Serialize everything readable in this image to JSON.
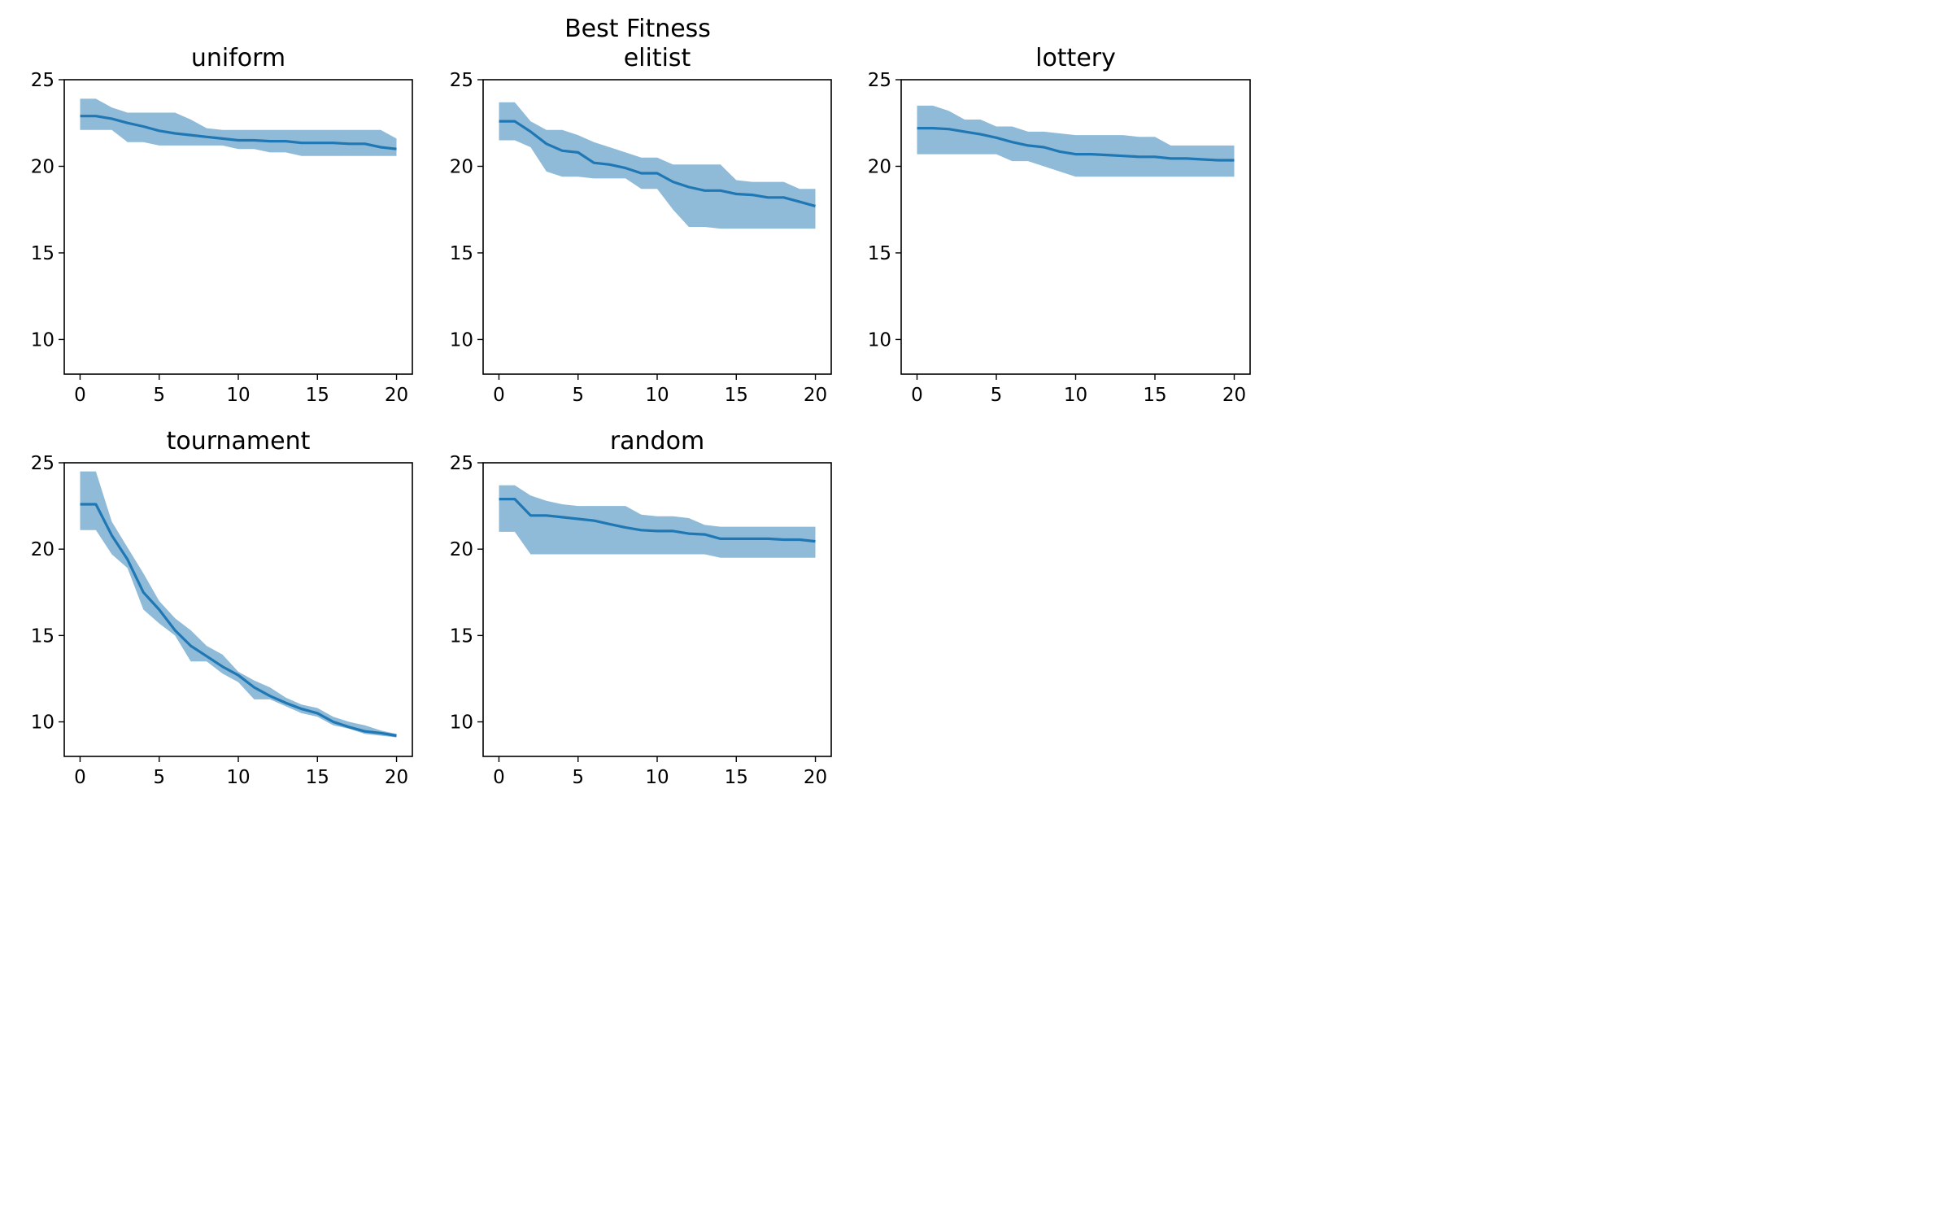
{
  "figure_title": "Best Fitness",
  "colors": {
    "line": "#1f77b4",
    "band": "#1f77b4",
    "band_opacity": 0.5
  },
  "chart_data": [
    {
      "type": "line",
      "title": "uniform",
      "xlim": [
        -1,
        21
      ],
      "ylim": [
        8,
        25
      ],
      "xticks": [
        0,
        5,
        10,
        15,
        20
      ],
      "yticks": [
        10,
        15,
        20,
        25
      ],
      "x": [
        0,
        1,
        2,
        3,
        4,
        5,
        6,
        7,
        8,
        9,
        10,
        11,
        12,
        13,
        14,
        15,
        16,
        17,
        18,
        19,
        20
      ],
      "series": [
        {
          "mean": [
            22.9,
            22.9,
            22.75,
            22.5,
            22.3,
            22.05,
            21.9,
            21.8,
            21.7,
            21.6,
            21.5,
            21.5,
            21.45,
            21.45,
            21.35,
            21.35,
            21.35,
            21.3,
            21.3,
            21.1,
            21.0
          ],
          "upper": [
            23.9,
            23.9,
            23.4,
            23.1,
            23.1,
            23.1,
            23.1,
            22.7,
            22.2,
            22.1,
            22.1,
            22.1,
            22.1,
            22.1,
            22.1,
            22.1,
            22.1,
            22.1,
            22.1,
            22.1,
            21.6
          ],
          "lower": [
            22.1,
            22.1,
            22.1,
            21.4,
            21.4,
            21.2,
            21.2,
            21.2,
            21.2,
            21.2,
            21.0,
            21.0,
            20.8,
            20.8,
            20.6,
            20.6,
            20.6,
            20.6,
            20.6,
            20.6,
            20.6
          ]
        }
      ]
    },
    {
      "type": "line",
      "title": "elitist",
      "xlim": [
        -1,
        21
      ],
      "ylim": [
        8,
        25
      ],
      "xticks": [
        0,
        5,
        10,
        15,
        20
      ],
      "yticks": [
        10,
        15,
        20,
        25
      ],
      "x": [
        0,
        1,
        2,
        3,
        4,
        5,
        6,
        7,
        8,
        9,
        10,
        11,
        12,
        13,
        14,
        15,
        16,
        17,
        18,
        19,
        20
      ],
      "series": [
        {
          "mean": [
            22.6,
            22.6,
            22.0,
            21.3,
            20.9,
            20.8,
            20.2,
            20.1,
            19.9,
            19.6,
            19.6,
            19.1,
            18.8,
            18.6,
            18.6,
            18.4,
            18.35,
            18.2,
            18.2,
            17.95,
            17.7
          ],
          "upper": [
            23.7,
            23.7,
            22.6,
            22.1,
            22.1,
            21.8,
            21.4,
            21.1,
            20.8,
            20.5,
            20.5,
            20.1,
            20.1,
            20.1,
            20.1,
            19.2,
            19.1,
            19.1,
            19.1,
            18.7,
            18.7
          ],
          "lower": [
            21.5,
            21.5,
            21.1,
            19.7,
            19.4,
            19.4,
            19.3,
            19.3,
            19.3,
            18.7,
            18.7,
            17.5,
            16.5,
            16.5,
            16.4,
            16.4,
            16.4,
            16.4,
            16.4,
            16.4,
            16.4
          ]
        }
      ]
    },
    {
      "type": "line",
      "title": "lottery",
      "xlim": [
        -1,
        21
      ],
      "ylim": [
        8,
        25
      ],
      "xticks": [
        0,
        5,
        10,
        15,
        20
      ],
      "yticks": [
        10,
        15,
        20,
        25
      ],
      "x": [
        0,
        1,
        2,
        3,
        4,
        5,
        6,
        7,
        8,
        9,
        10,
        11,
        12,
        13,
        14,
        15,
        16,
        17,
        18,
        19,
        20
      ],
      "series": [
        {
          "mean": [
            22.2,
            22.2,
            22.15,
            22.0,
            21.85,
            21.65,
            21.4,
            21.2,
            21.1,
            20.85,
            20.7,
            20.7,
            20.65,
            20.6,
            20.55,
            20.55,
            20.45,
            20.45,
            20.4,
            20.35,
            20.35
          ],
          "upper": [
            23.5,
            23.5,
            23.2,
            22.7,
            22.7,
            22.3,
            22.3,
            22.0,
            22.0,
            21.9,
            21.8,
            21.8,
            21.8,
            21.8,
            21.7,
            21.7,
            21.2,
            21.2,
            21.2,
            21.2,
            21.2
          ],
          "lower": [
            20.7,
            20.7,
            20.7,
            20.7,
            20.7,
            20.7,
            20.3,
            20.3,
            20.0,
            19.7,
            19.4,
            19.4,
            19.4,
            19.4,
            19.4,
            19.4,
            19.4,
            19.4,
            19.4,
            19.4,
            19.4
          ]
        }
      ]
    },
    {
      "type": "line",
      "title": "tournament",
      "xlim": [
        -1,
        21
      ],
      "ylim": [
        8,
        25
      ],
      "xticks": [
        0,
        5,
        10,
        15,
        20
      ],
      "yticks": [
        10,
        15,
        20,
        25
      ],
      "x": [
        0,
        1,
        2,
        3,
        4,
        5,
        6,
        7,
        8,
        9,
        10,
        11,
        12,
        13,
        14,
        15,
        16,
        17,
        18,
        19,
        20
      ],
      "series": [
        {
          "mean": [
            22.6,
            22.6,
            20.8,
            19.4,
            17.5,
            16.5,
            15.3,
            14.4,
            13.8,
            13.2,
            12.7,
            12.0,
            11.5,
            11.1,
            10.75,
            10.5,
            10.0,
            9.7,
            9.45,
            9.35,
            9.2
          ],
          "upper": [
            24.5,
            24.5,
            21.6,
            20.1,
            18.6,
            17.0,
            16.0,
            15.3,
            14.4,
            13.9,
            12.9,
            12.4,
            12.0,
            11.4,
            11.0,
            10.8,
            10.3,
            10.0,
            9.8,
            9.5,
            9.3
          ],
          "lower": [
            21.1,
            21.1,
            19.7,
            18.9,
            16.5,
            15.7,
            15.0,
            13.5,
            13.5,
            12.8,
            12.3,
            11.3,
            11.3,
            10.9,
            10.5,
            10.3,
            9.8,
            9.6,
            9.3,
            9.2,
            9.1
          ]
        }
      ]
    },
    {
      "type": "line",
      "title": "random",
      "xlim": [
        -1,
        21
      ],
      "ylim": [
        8,
        25
      ],
      "xticks": [
        0,
        5,
        10,
        15,
        20
      ],
      "yticks": [
        10,
        15,
        20,
        25
      ],
      "x": [
        0,
        1,
        2,
        3,
        4,
        5,
        6,
        7,
        8,
        9,
        10,
        11,
        12,
        13,
        14,
        15,
        16,
        17,
        18,
        19,
        20
      ],
      "series": [
        {
          "mean": [
            22.9,
            22.9,
            21.95,
            21.95,
            21.85,
            21.75,
            21.65,
            21.45,
            21.25,
            21.1,
            21.05,
            21.05,
            20.9,
            20.85,
            20.6,
            20.6,
            20.6,
            20.6,
            20.55,
            20.55,
            20.45
          ],
          "upper": [
            23.7,
            23.7,
            23.1,
            22.8,
            22.6,
            22.5,
            22.5,
            22.5,
            22.5,
            22.0,
            21.9,
            21.9,
            21.8,
            21.4,
            21.3,
            21.3,
            21.3,
            21.3,
            21.3,
            21.3,
            21.3
          ],
          "lower": [
            21.0,
            21.0,
            19.7,
            19.7,
            19.7,
            19.7,
            19.7,
            19.7,
            19.7,
            19.7,
            19.7,
            19.7,
            19.7,
            19.7,
            19.5,
            19.5,
            19.5,
            19.5,
            19.5,
            19.5,
            19.5
          ]
        }
      ]
    }
  ]
}
